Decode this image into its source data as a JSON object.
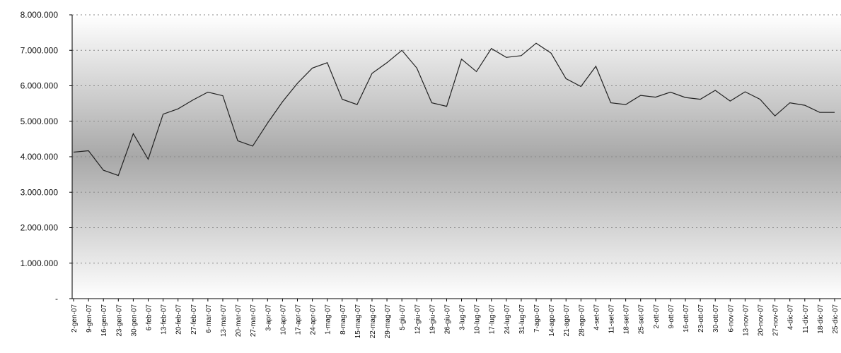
{
  "chart_data": {
    "type": "line",
    "categories": [
      "2-gen-07",
      "9-gen-07",
      "16-gen-07",
      "23-gen-07",
      "30-gen-07",
      "6-feb-07",
      "13-feb-07",
      "20-feb-07",
      "27-feb-07",
      "6-mar-07",
      "13-mar-07",
      "20-mar-07",
      "27-mar-07",
      "3-apr-07",
      "10-apr-07",
      "17-apr-07",
      "24-apr-07",
      "1-mag-07",
      "8-mag-07",
      "15-mag-07",
      "22-mag-07",
      "29-mag-07",
      "5-giu-07",
      "12-giu-07",
      "19-giu-07",
      "26-giu-07",
      "3-lug-07",
      "10-lug-07",
      "17-lug-07",
      "24-lug-07",
      "31-lug-07",
      "7-ago-07",
      "14-ago-07",
      "21-ago-07",
      "28-ago-07",
      "4-set-07",
      "11-set-07",
      "18-set-07",
      "25-set-07",
      "2-ott-07",
      "9-ott-07",
      "16-ott-07",
      "23-ott-07",
      "30-ott-07",
      "6-nov-07",
      "13-nov-07",
      "20-nov-07",
      "27-nov-07",
      "4-dic-07",
      "11-dic-07",
      "18-dic-07",
      "25-dic-07"
    ],
    "values": [
      4130000,
      4170000,
      3620000,
      3470000,
      4650000,
      3930000,
      5200000,
      5350000,
      5600000,
      5820000,
      5720000,
      4450000,
      4300000,
      4950000,
      5550000,
      6070000,
      6500000,
      6650000,
      5620000,
      5470000,
      6350000,
      6650000,
      7000000,
      6500000,
      5520000,
      5420000,
      6750000,
      6400000,
      7050000,
      6800000,
      6850000,
      7200000,
      6920000,
      6200000,
      5980000,
      6550000,
      5520000,
      5470000,
      5730000,
      5680000,
      5820000,
      5670000,
      5620000,
      5870000,
      5570000,
      5830000,
      5620000,
      5150000,
      5520000,
      5450000,
      5250000,
      5250000
    ],
    "color": "#222222",
    "ylim": [
      0,
      8000000
    ],
    "yticks": [
      {
        "value": 0,
        "label": "-"
      },
      {
        "value": 1000000,
        "label": "1.000.000"
      },
      {
        "value": 2000000,
        "label": "2.000.000"
      },
      {
        "value": 3000000,
        "label": "3.000.000"
      },
      {
        "value": 4000000,
        "label": "4.000.000"
      },
      {
        "value": 5000000,
        "label": "5.000.000"
      },
      {
        "value": 6000000,
        "label": "6.000.000"
      },
      {
        "value": 7000000,
        "label": "7.000.000"
      },
      {
        "value": 8000000,
        "label": "8.000.000"
      }
    ],
    "grid": true
  }
}
